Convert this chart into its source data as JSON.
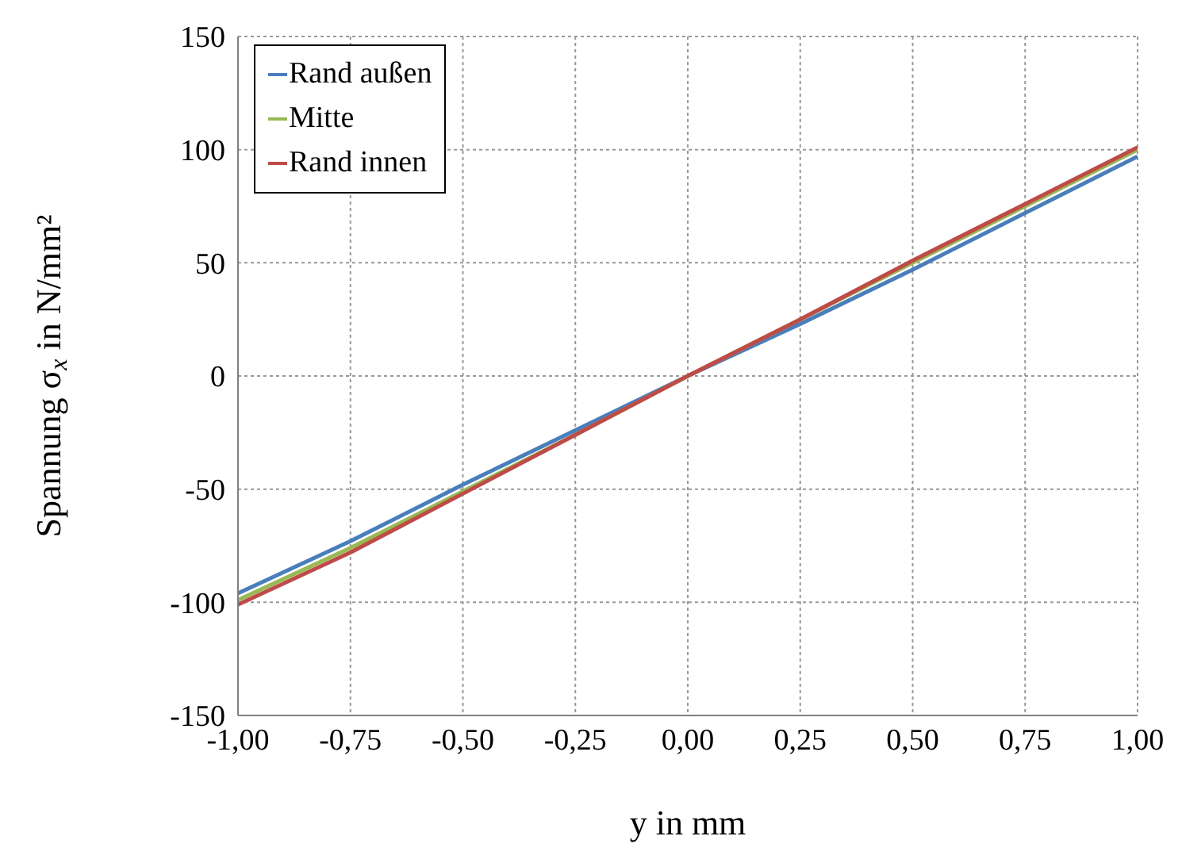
{
  "chart_data": {
    "type": "line",
    "xlabel": "y in mm",
    "ylabel": "Spannung σ$_{x}$ in N/mm²",
    "x": [
      -1,
      -0.75,
      -0.5,
      -0.25,
      0,
      0.25,
      0.5,
      0.75,
      1
    ],
    "series": [
      {
        "name": "Rand außen",
        "color": "#4a7ebb",
        "values": [
          -96,
          -73,
          -48,
          -24,
          0,
          23,
          47,
          72,
          97
        ]
      },
      {
        "name": "Mitte",
        "color": "#98b954",
        "values": [
          -99,
          -76,
          -51,
          -26,
          0,
          25,
          50,
          75,
          100
        ]
      },
      {
        "name": "Rand innen",
        "color": "#be4b48",
        "values": [
          -101,
          -78,
          -52,
          -26,
          0,
          25,
          51,
          76,
          101
        ]
      }
    ],
    "xlim": [
      -1,
      1
    ],
    "ylim": [
      -150,
      150
    ],
    "xticks": [
      {
        "value": -1,
        "label": "-1,00"
      },
      {
        "value": -0.75,
        "label": "-0,75"
      },
      {
        "value": -0.5,
        "label": "-0,50"
      },
      {
        "value": -0.25,
        "label": "-0,25"
      },
      {
        "value": 0,
        "label": "0,00"
      },
      {
        "value": 0.25,
        "label": "0,25"
      },
      {
        "value": 0.5,
        "label": "0,50"
      },
      {
        "value": 0.75,
        "label": "0,75"
      },
      {
        "value": 1,
        "label": "1,00"
      }
    ],
    "yticks": [
      -150,
      -100,
      -50,
      0,
      50,
      100,
      150
    ],
    "grid": true,
    "legend": "top left",
    "marker": "none",
    "line_style": "solid"
  }
}
